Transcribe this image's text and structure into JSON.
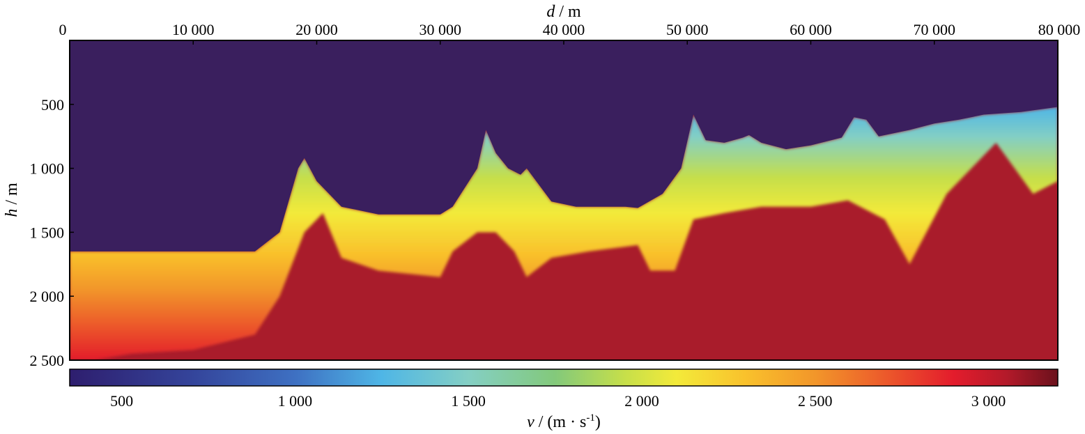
{
  "chart_data": {
    "type": "heatmap",
    "title": "",
    "xlabel": {
      "symbol": "d",
      "unit": " / m"
    },
    "ylabel": {
      "symbol": "h",
      "unit": " / m"
    },
    "colorbar_label": {
      "symbol": "v",
      "unit_prefix": " / (m · s",
      "superscript": "-1",
      "unit_suffix": ")"
    },
    "x_axis": {
      "position": "top",
      "range": [
        0,
        80000
      ],
      "ticks": [
        0,
        10000,
        20000,
        30000,
        40000,
        50000,
        60000,
        70000,
        80000
      ],
      "tick_labels": [
        "0",
        "10 000",
        "20 000",
        "30 000",
        "40 000",
        "50 000",
        "60 000",
        "70 000",
        "80 000"
      ]
    },
    "y_axis": {
      "inverted": true,
      "range": [
        0,
        2500
      ],
      "ticks": [
        500,
        1000,
        1500,
        2000,
        2500
      ],
      "tick_labels": [
        "500",
        "1 000",
        "1 500",
        "2 000",
        "2 500"
      ]
    },
    "colorbar": {
      "range": [
        350,
        3200
      ],
      "ticks": [
        500,
        1000,
        1500,
        2000,
        2500,
        3000
      ],
      "tick_labels": [
        "500",
        "1 000",
        "1 500",
        "2 000",
        "2 500",
        "3 000"
      ],
      "colors": [
        {
          "v": 350,
          "color": "#2e1e6e"
        },
        {
          "v": 700,
          "color": "#34449a"
        },
        {
          "v": 1000,
          "color": "#3e70c2"
        },
        {
          "v": 1250,
          "color": "#4fb6e6"
        },
        {
          "v": 1500,
          "color": "#84cfc4"
        },
        {
          "v": 1750,
          "color": "#83c97b"
        },
        {
          "v": 1950,
          "color": "#c6df4a"
        },
        {
          "v": 2100,
          "color": "#f3ea3a"
        },
        {
          "v": 2300,
          "color": "#f9c12c"
        },
        {
          "v": 2500,
          "color": "#f2962a"
        },
        {
          "v": 2700,
          "color": "#ec5a2b"
        },
        {
          "v": 2900,
          "color": "#e31c2c"
        },
        {
          "v": 3050,
          "color": "#b41a2a"
        },
        {
          "v": 3200,
          "color": "#6b111c"
        }
      ]
    },
    "water_color": "#3a1f5e",
    "sediment_color": "#a91c2b",
    "seafloor_depth_profile": {
      "x": [
        0,
        5000,
        10000,
        15000,
        17000,
        18500,
        19000,
        20000,
        21000,
        22000,
        25000,
        30000,
        31000,
        33000,
        33700,
        34500,
        35500,
        36500,
        37000,
        39000,
        41000,
        43000,
        45000,
        46000,
        48000,
        49500,
        50500,
        51500,
        53000,
        54500,
        55000,
        56000,
        58000,
        60000,
        62500,
        63500,
        64500,
        65500,
        68000,
        70000,
        72000,
        74000,
        77000,
        80000
      ],
      "depth": [
        1650,
        1650,
        1650,
        1650,
        1500,
        1000,
        920,
        1100,
        1200,
        1300,
        1360,
        1360,
        1300,
        1000,
        700,
        880,
        1000,
        1050,
        1000,
        1260,
        1300,
        1300,
        1300,
        1310,
        1200,
        1000,
        580,
        780,
        800,
        760,
        740,
        800,
        850,
        820,
        760,
        600,
        620,
        750,
        700,
        650,
        620,
        580,
        560,
        520
      ]
    },
    "high_velocity_top_depth": {
      "x": [
        0,
        2000,
        5000,
        10000,
        15000,
        17000,
        19000,
        20500,
        22000,
        25000,
        30000,
        31000,
        33000,
        34500,
        36000,
        37000,
        39000,
        42000,
        46000,
        47000,
        49000,
        50500,
        53000,
        56000,
        60000,
        63000,
        66000,
        68000,
        71000,
        73000,
        75000,
        78000,
        80000
      ],
      "depth": [
        2500,
        2500,
        2450,
        2420,
        2300,
        2000,
        1500,
        1350,
        1700,
        1800,
        1850,
        1650,
        1500,
        1500,
        1650,
        1850,
        1700,
        1650,
        1600,
        1800,
        1800,
        1400,
        1350,
        1300,
        1300,
        1250,
        1400,
        1750,
        1200,
        1000,
        800,
        1200,
        1100
      ]
    }
  }
}
